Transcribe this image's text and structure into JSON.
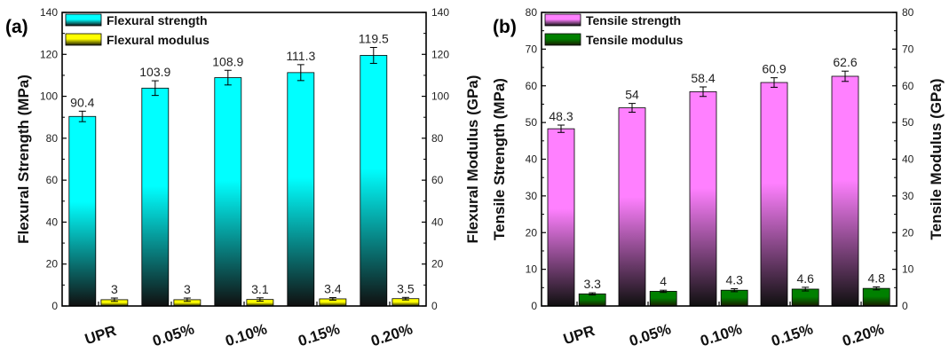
{
  "colors": {
    "flexural_strength": "#00ffff",
    "flexural_modulus": "#ffff00",
    "tensile_strength": "#ff80ff",
    "tensile_modulus": "#008000",
    "axis": "#000000"
  },
  "chart_data": [
    {
      "type": "bar",
      "panel_label": "(a)",
      "categories": [
        "UPR",
        "0.05%",
        "0.10%",
        "0.15%",
        "0.20%"
      ],
      "ylabel": "Flexural Strength (MPa)",
      "y2label": "Flexural Modulus (GPa)",
      "ylim": [
        0,
        140
      ],
      "y2lim": [
        0,
        140
      ],
      "yticks": [
        0,
        20,
        40,
        60,
        80,
        100,
        120,
        140
      ],
      "legend_position": "top-left",
      "series": [
        {
          "name": "Flexural strength",
          "axis": "left",
          "values": [
            90.4,
            103.9,
            108.9,
            111.3,
            119.5
          ],
          "value_labels": [
            "90.4",
            "103.9",
            "108.9",
            "111.3",
            "119.5"
          ],
          "errors": [
            2.5,
            3.5,
            3.5,
            3.8,
            3.8
          ],
          "color": "#00ffff"
        },
        {
          "name": "Flexural modulus",
          "axis": "right",
          "values": [
            3,
            3,
            3.1,
            3.4,
            3.5
          ],
          "value_labels": [
            "3",
            "3",
            "3.1",
            "3.4",
            "3.5"
          ],
          "errors": [
            0.8,
            0.8,
            0.8,
            0.6,
            0.6
          ],
          "color": "#ffff00"
        }
      ]
    },
    {
      "type": "bar",
      "panel_label": "(b)",
      "categories": [
        "UPR",
        "0.05%",
        "0.10%",
        "0.15%",
        "0.20%"
      ],
      "ylabel": "Tensile Strength (MPa)",
      "y2label": "Tensile Modulus (GPa)",
      "ylim": [
        0,
        80
      ],
      "y2lim": [
        0,
        80
      ],
      "yticks": [
        0,
        10,
        20,
        30,
        40,
        50,
        60,
        70,
        80
      ],
      "legend_position": "top-left",
      "series": [
        {
          "name": "Tensile strength",
          "axis": "left",
          "values": [
            48.3,
            54,
            58.4,
            60.9,
            62.6
          ],
          "value_labels": [
            "48.3",
            "54",
            "58.4",
            "60.9",
            "62.6"
          ],
          "errors": [
            1.0,
            1.2,
            1.3,
            1.3,
            1.4
          ],
          "color": "#ff80ff"
        },
        {
          "name": "Tensile modulus",
          "axis": "right",
          "values": [
            3.3,
            4,
            4.3,
            4.6,
            4.8
          ],
          "value_labels": [
            "3.3",
            "4",
            "4.3",
            "4.6",
            "4.8"
          ],
          "errors": [
            0.3,
            0.3,
            0.4,
            0.5,
            0.4
          ],
          "color": "#008000"
        }
      ]
    }
  ]
}
